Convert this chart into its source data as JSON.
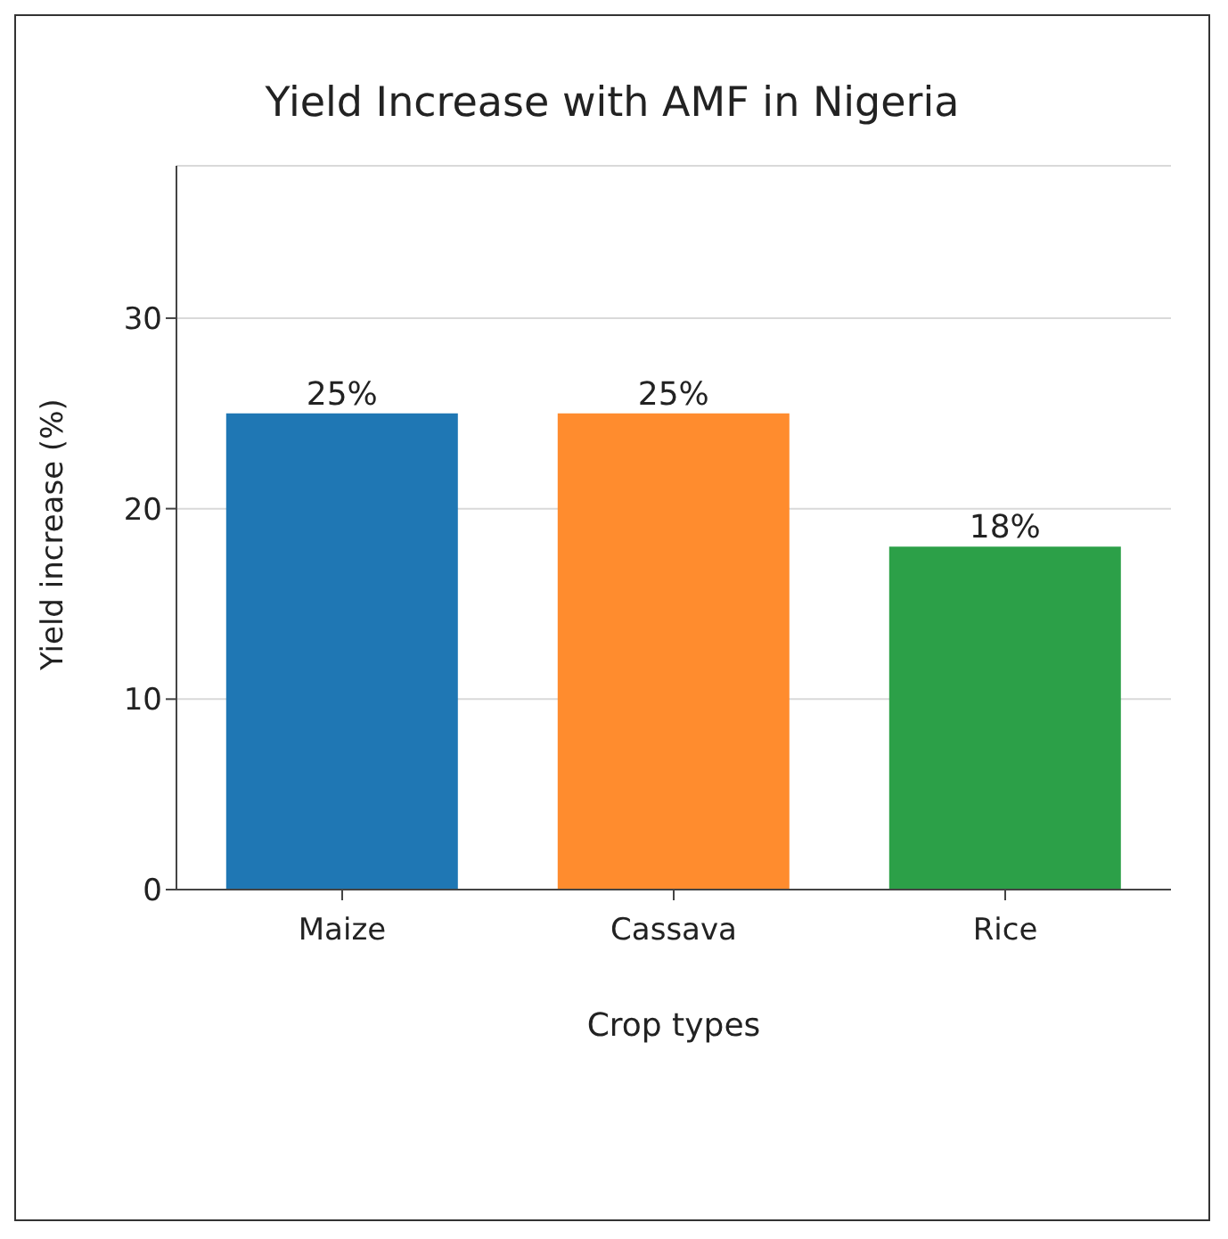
{
  "chart_data": {
    "type": "bar",
    "title": "Yield Increase with AMF in Nigeria",
    "xlabel": "Crop types",
    "ylabel": "Yield increase (%)",
    "categories": [
      "Maize",
      "Cassava",
      "Rice"
    ],
    "values": [
      25,
      25,
      18
    ],
    "colors": [
      "#1f77b4",
      "#ff8c2e",
      "#2ca048"
    ],
    "value_labels": [
      "25%",
      "25%",
      "18%"
    ],
    "ylim": [
      0,
      38
    ],
    "yticks": [
      0,
      10,
      20,
      30
    ],
    "grid": "y"
  }
}
